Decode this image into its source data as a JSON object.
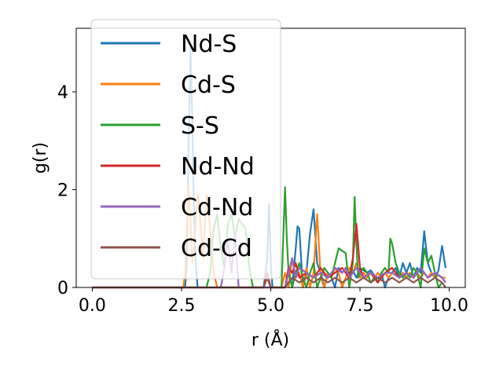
{
  "chart_data": {
    "type": "line",
    "xlabel": "r (Å)",
    "ylabel": "g(r)",
    "xlim": [
      -0.45,
      10.45
    ],
    "ylim": [
      0,
      5.3
    ],
    "xticks": [
      0.0,
      2.5,
      5.0,
      7.5,
      10.0
    ],
    "xtick_labels": [
      "0.0",
      "2.5",
      "5.0",
      "7.5",
      "10.0"
    ],
    "yticks": [
      0,
      2,
      4
    ],
    "ytick_labels": [
      "0",
      "2",
      "4"
    ],
    "grid": false,
    "legend_placement": "upper-left",
    "series": [
      {
        "name": "Nd-S",
        "color": "#1f77b4",
        "x": [
          0.0,
          2.6,
          2.65,
          2.7,
          2.75,
          2.8,
          2.85,
          2.9,
          2.95,
          3.0,
          3.05,
          3.1,
          4.7,
          4.8,
          4.85,
          4.9,
          4.95,
          5.0,
          5.05,
          5.1,
          5.2,
          5.4,
          5.5,
          5.6,
          5.7,
          5.75,
          5.8,
          5.9,
          6.0,
          6.1,
          6.2,
          6.3,
          6.4,
          6.5,
          6.6,
          6.7,
          6.8,
          6.9,
          7.0,
          7.1,
          7.2,
          7.3,
          7.4,
          7.5,
          7.6,
          7.7,
          7.8,
          7.9,
          8.0,
          8.1,
          8.2,
          8.3,
          8.4,
          8.5,
          8.6,
          8.7,
          8.8,
          8.9,
          9.0,
          9.1,
          9.2,
          9.3,
          9.4,
          9.5,
          9.6,
          9.7,
          9.8,
          9.9
        ],
        "y": [
          0.0,
          0.0,
          0.5,
          3.0,
          4.9,
          3.5,
          1.5,
          0.5,
          0.0,
          0.0,
          0.0,
          0.0,
          0.0,
          0.0,
          0.3,
          0.6,
          1.7,
          0.5,
          0.0,
          0.0,
          0.0,
          0.0,
          0.3,
          0.0,
          0.8,
          1.25,
          1.2,
          0.0,
          0.3,
          1.1,
          1.6,
          0.5,
          0.3,
          0.0,
          0.3,
          0.2,
          0.0,
          0.4,
          0.3,
          0.4,
          0.3,
          0.35,
          0.2,
          0.4,
          0.35,
          0.3,
          0.35,
          0.25,
          0.1,
          0.3,
          0.0,
          0.2,
          0.3,
          0.4,
          0.2,
          0.5,
          0.3,
          0.5,
          0.2,
          0.4,
          0.3,
          1.15,
          0.5,
          0.3,
          0.2,
          0.35,
          0.85,
          0.4
        ]
      },
      {
        "name": "Cd-S",
        "color": "#ff7f0e",
        "x": [
          0.0,
          2.5,
          2.55,
          2.6,
          2.65,
          2.7,
          2.75,
          2.8,
          2.85,
          2.9,
          2.95,
          3.0,
          3.1,
          3.2,
          3.3,
          3.4,
          3.5,
          3.6,
          5.3,
          5.4,
          5.5,
          5.6,
          5.7,
          5.8,
          5.9,
          6.0,
          6.1,
          6.2,
          6.3,
          6.4,
          6.5,
          6.6,
          6.7,
          6.8,
          6.9,
          7.0,
          7.1,
          7.2,
          7.3,
          7.4,
          7.5,
          7.6,
          7.7,
          7.8,
          7.9,
          8.0,
          8.1,
          8.2,
          8.3,
          8.4,
          8.5,
          8.6,
          8.7,
          8.8,
          8.9,
          9.0,
          9.1,
          9.2,
          9.3,
          9.4,
          9.5,
          9.6,
          9.7,
          9.8,
          9.9
        ],
        "y": [
          0.0,
          0.0,
          0.0,
          0.3,
          1.2,
          2.1,
          1.4,
          0.5,
          0.8,
          1.4,
          1.9,
          1.6,
          0.6,
          1.9,
          1.2,
          0.3,
          0.0,
          0.0,
          0.0,
          0.3,
          0.0,
          0.6,
          0.2,
          0.3,
          0.0,
          0.4,
          0.0,
          0.3,
          1.5,
          0.2,
          0.0,
          0.3,
          0.2,
          0.4,
          0.3,
          0.0,
          0.2,
          0.4,
          0.3,
          0.5,
          0.2,
          0.3,
          0.2,
          0.3,
          0.2,
          0.3,
          0.2,
          0.3,
          0.2,
          0.3,
          0.25,
          0.2,
          0.3,
          0.2,
          0.3,
          0.2,
          0.3,
          0.2,
          0.3,
          0.2,
          0.3,
          0.2,
          0.25,
          0.2,
          0.2
        ]
      },
      {
        "name": "S-S",
        "color": "#2ca02c",
        "x": [
          0.0,
          3.2,
          3.3,
          3.4,
          3.5,
          3.6,
          3.7,
          3.8,
          3.9,
          4.0,
          4.1,
          4.2,
          4.3,
          4.4,
          4.5,
          5.3,
          5.35,
          5.4,
          5.45,
          5.5,
          5.6,
          5.7,
          5.8,
          5.9,
          6.0,
          6.1,
          6.2,
          6.3,
          6.4,
          6.5,
          6.6,
          6.7,
          6.8,
          6.9,
          7.0,
          7.1,
          7.2,
          7.3,
          7.35,
          7.4,
          7.45,
          7.5,
          7.6,
          7.7,
          7.8,
          7.9,
          8.0,
          8.1,
          8.2,
          8.3,
          8.35,
          8.4,
          8.5,
          8.6,
          8.7,
          8.8,
          8.9,
          9.0,
          9.1,
          9.2,
          9.3,
          9.4,
          9.5,
          9.6,
          9.7,
          9.8,
          9.9
        ],
        "y": [
          0.0,
          0.0,
          0.3,
          1.2,
          1.5,
          0.8,
          0.4,
          1.3,
          1.5,
          1.0,
          1.4,
          1.3,
          1.2,
          0.4,
          0.0,
          0.0,
          1.0,
          2.05,
          1.0,
          0.3,
          0.0,
          0.3,
          0.5,
          0.2,
          0.0,
          0.3,
          0.5,
          0.0,
          0.2,
          0.4,
          0.3,
          0.2,
          0.5,
          0.8,
          0.75,
          0.7,
          0.0,
          0.5,
          1.85,
          0.9,
          0.2,
          0.3,
          0.4,
          0.3,
          0.1,
          0.2,
          0.1,
          0.3,
          0.4,
          0.3,
          1.0,
          0.9,
          0.5,
          0.3,
          0.2,
          0.3,
          0.2,
          0.4,
          0.3,
          0.0,
          0.8,
          0.5,
          0.65,
          0.3,
          0.0,
          0.1,
          0.0
        ]
      },
      {
        "name": "Nd-Nd",
        "color": "#d62728",
        "x": [
          0.0,
          4.8,
          4.9,
          5.0,
          5.4,
          5.5,
          5.6,
          5.7,
          5.8,
          6.0,
          6.2,
          6.4,
          6.6,
          6.8,
          7.0,
          7.2,
          7.3,
          7.4,
          7.5,
          7.6,
          7.8,
          8.0,
          8.2,
          8.4,
          8.6,
          8.8,
          9.0,
          9.2,
          9.4,
          9.6,
          9.8,
          9.9
        ],
        "y": [
          0.0,
          0.0,
          0.3,
          0.0,
          0.0,
          0.4,
          0.3,
          0.5,
          0.2,
          0.3,
          0.2,
          0.4,
          0.2,
          0.3,
          0.4,
          0.2,
          0.6,
          1.3,
          0.4,
          0.2,
          0.3,
          0.1,
          0.3,
          0.4,
          0.2,
          0.3,
          0.2,
          0.4,
          0.2,
          0.3,
          0.2,
          0.1
        ]
      },
      {
        "name": "Cd-Nd",
        "color": "#9467bd",
        "x": [
          0.0,
          3.6,
          3.7,
          3.8,
          3.9,
          4.0,
          4.1,
          5.4,
          5.5,
          5.6,
          5.7,
          5.8,
          6.0,
          6.2,
          6.4,
          6.6,
          6.8,
          7.0,
          7.1,
          7.2,
          7.3,
          7.4,
          7.6,
          7.8,
          8.0,
          8.2,
          8.4,
          8.6,
          8.8,
          9.0,
          9.2,
          9.4,
          9.6,
          9.8,
          9.9
        ],
        "y": [
          0.0,
          0.0,
          0.4,
          1.0,
          0.3,
          1.1,
          0.0,
          0.0,
          0.3,
          0.6,
          0.2,
          0.4,
          0.3,
          0.2,
          0.3,
          0.2,
          0.4,
          0.3,
          0.4,
          0.2,
          0.3,
          0.4,
          0.2,
          0.3,
          0.2,
          0.3,
          0.3,
          0.2,
          0.3,
          0.2,
          0.4,
          0.2,
          0.3,
          0.2,
          0.1
        ]
      },
      {
        "name": "Cd-Cd",
        "color": "#8c564b",
        "x": [
          0.0,
          4.8,
          4.9,
          5.0,
          5.4,
          5.6,
          5.8,
          6.0,
          6.2,
          6.4,
          6.6,
          6.8,
          7.0,
          7.2,
          7.4,
          7.6,
          7.8,
          8.0,
          8.2,
          8.4,
          8.6,
          8.8,
          9.0,
          9.2,
          9.4,
          9.6,
          9.8,
          9.9
        ],
        "y": [
          0.0,
          0.0,
          0.2,
          0.0,
          0.0,
          0.2,
          0.1,
          0.2,
          0.1,
          0.2,
          0.1,
          0.2,
          0.1,
          0.2,
          0.1,
          0.2,
          0.1,
          0.2,
          0.1,
          0.2,
          0.1,
          0.2,
          0.1,
          0.2,
          0.1,
          0.2,
          0.1,
          0.0
        ]
      }
    ]
  }
}
